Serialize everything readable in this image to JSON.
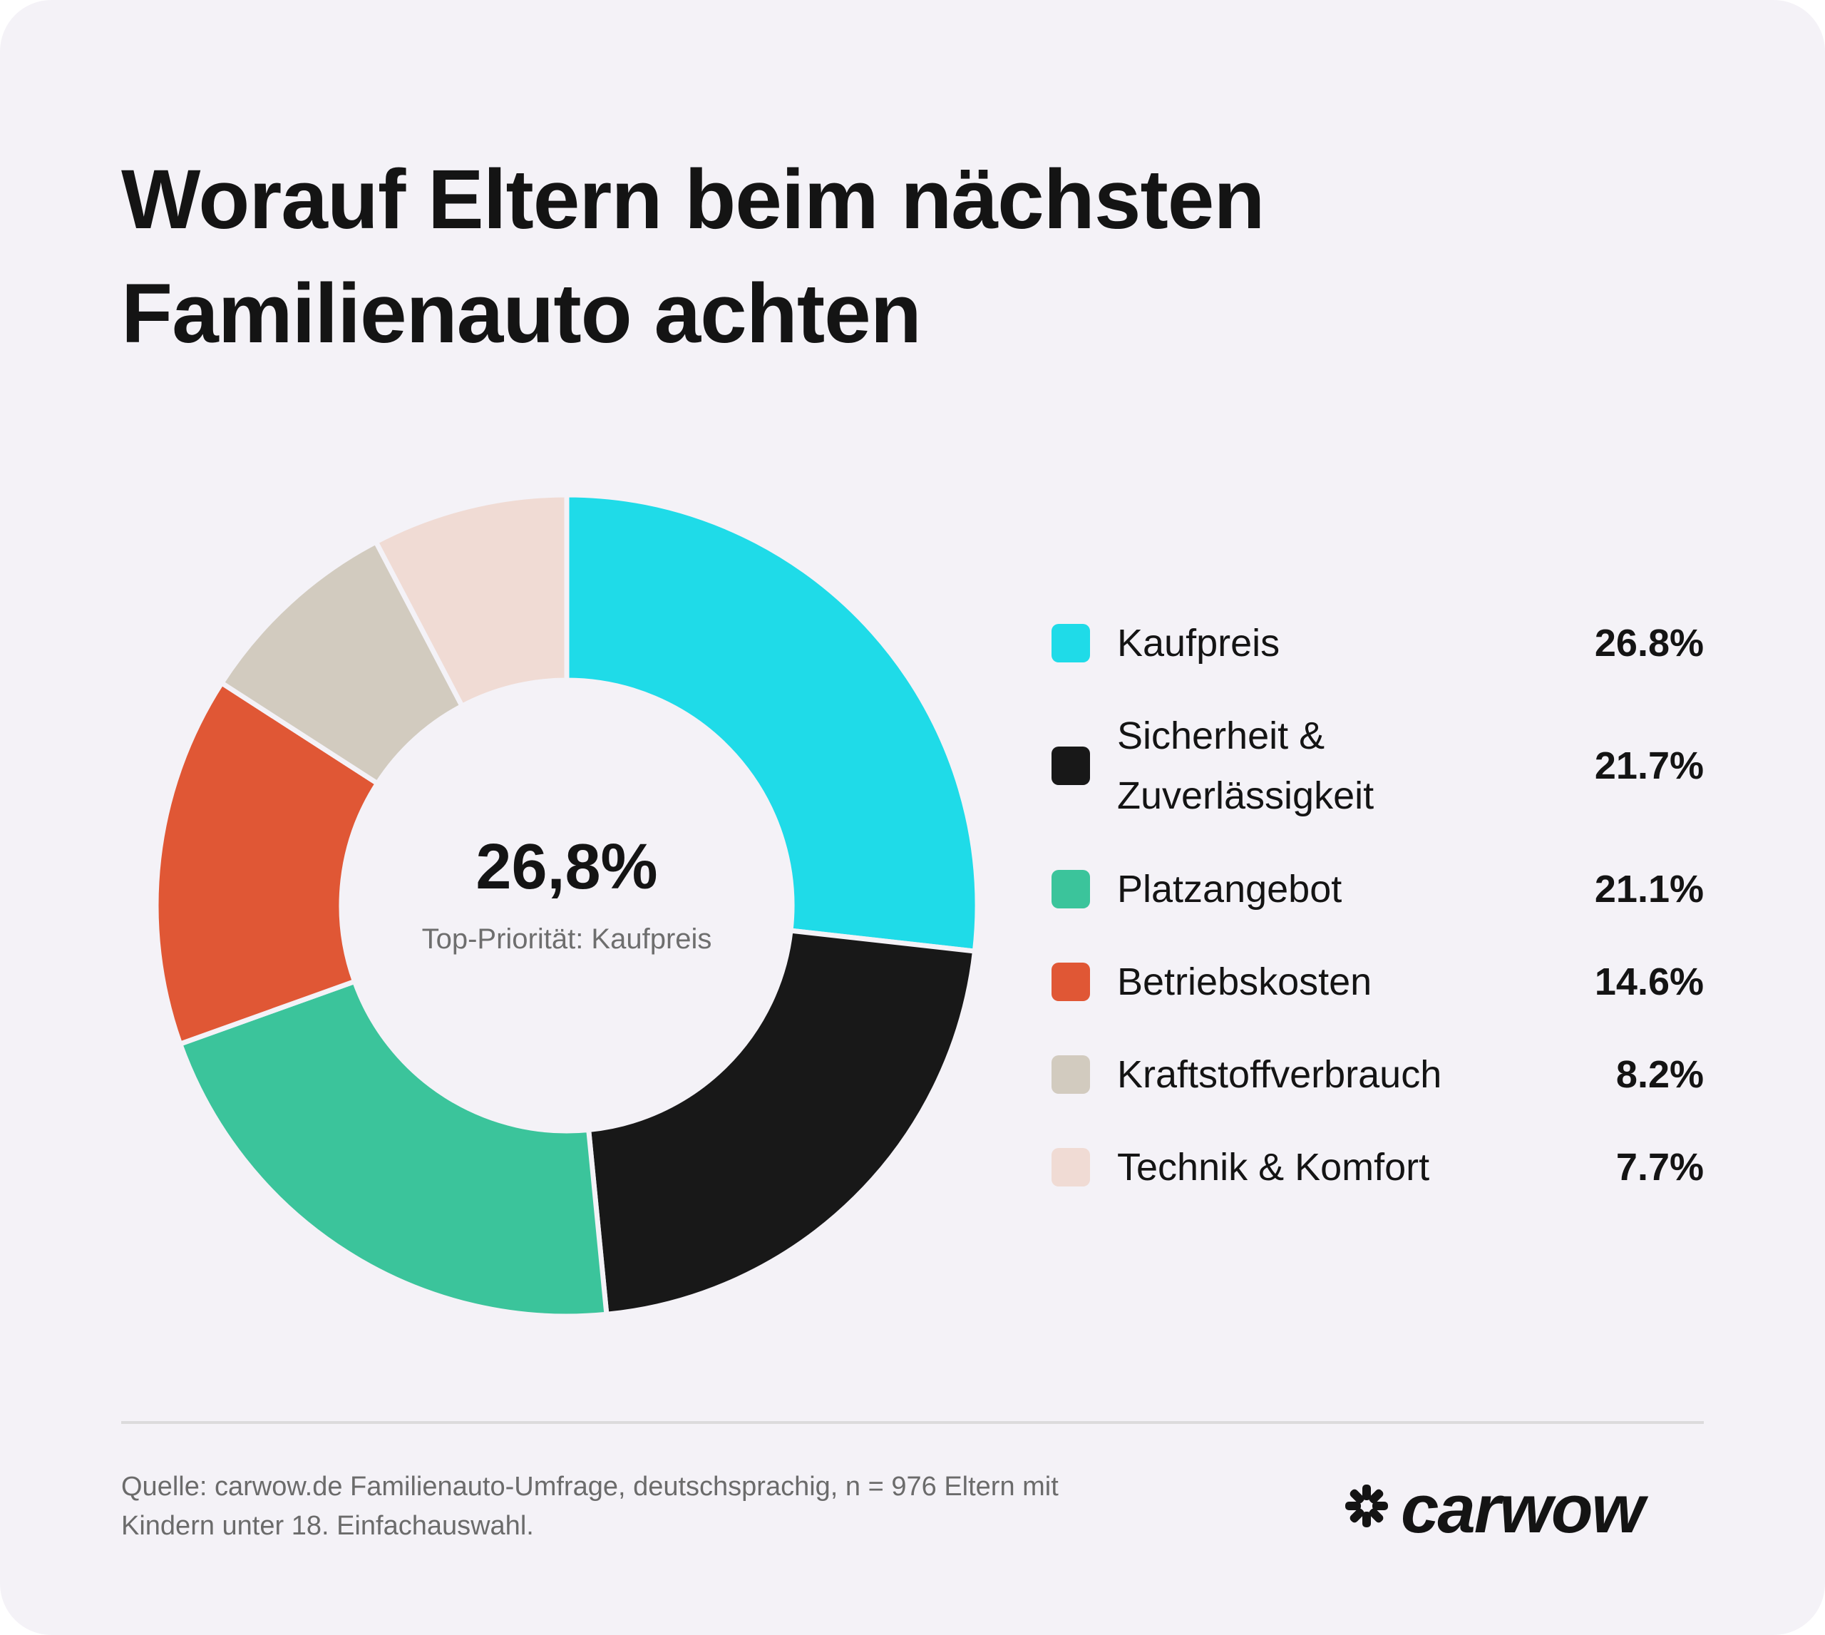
{
  "title_line1": "Worauf Eltern beim nächsten",
  "title_line2": "Familienauto achten",
  "center": {
    "value": "26,8%",
    "label": "Top-Priorität: Kaufpreis"
  },
  "chart_data": {
    "type": "pie",
    "donut": true,
    "categories": [
      "Kaufpreis",
      "Sicherheit & Zuverlässigkeit",
      "Platzangebot",
      "Betriebskosten",
      "Kraftstoffverbrauch",
      "Technik & Komfort"
    ],
    "values": [
      26.8,
      21.7,
      21.1,
      14.6,
      8.2,
      7.7
    ],
    "colors": [
      "#1fdbe8",
      "#181818",
      "#3bc49b",
      "#e05735",
      "#d2cbbf",
      "#f0dbd4"
    ],
    "legend_position": "right"
  },
  "legend": [
    {
      "label_lines": [
        "Kaufpreis"
      ],
      "value": "26.8%",
      "color": "#1fdbe8"
    },
    {
      "label_lines": [
        "Sicherheit &",
        "Zuverlässigkeit"
      ],
      "value": "21.7%",
      "color": "#181818"
    },
    {
      "label_lines": [
        "Platzangebot"
      ],
      "value": "21.1%",
      "color": "#3bc49b"
    },
    {
      "label_lines": [
        "Betriebskosten"
      ],
      "value": "14.6%",
      "color": "#e05735"
    },
    {
      "label_lines": [
        "Kraftstoffverbrauch"
      ],
      "value": "8.2%",
      "color": "#d2cbbf"
    },
    {
      "label_lines": [
        "Technik & Komfort"
      ],
      "value": "7.7%",
      "color": "#f0dbd4"
    }
  ],
  "source_line1": "Quelle: carwow.de Familienauto-Umfrage, deutschsprachig, n = 976 Eltern mit",
  "source_line2": "Kindern unter 18. Einfachauswahl.",
  "logo": {
    "text": "carwow",
    "icon": "carwow-logo-icon"
  }
}
